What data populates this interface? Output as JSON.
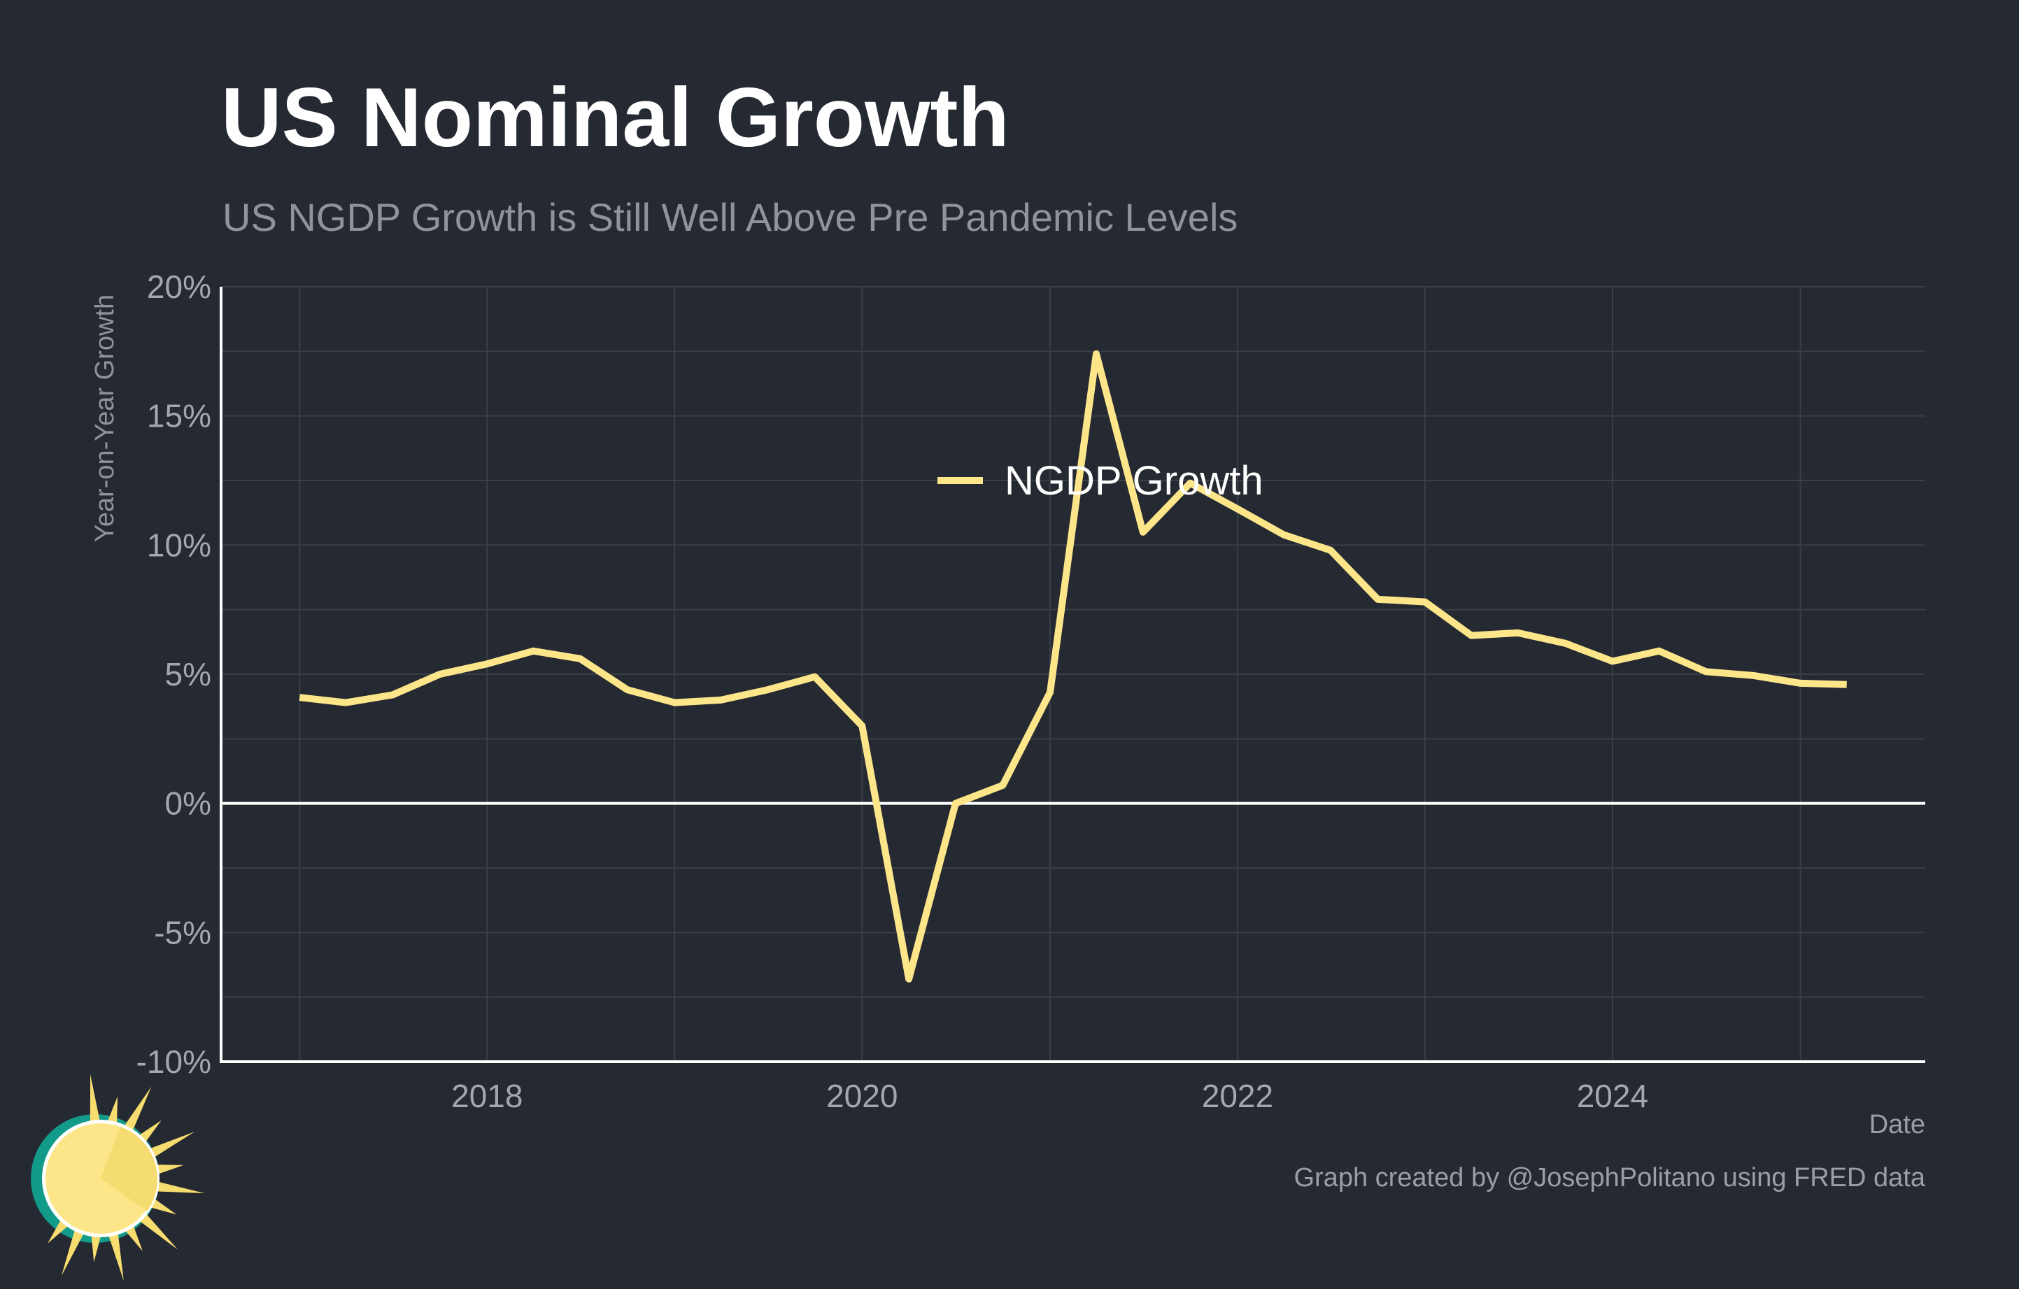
{
  "header": {
    "title": "US Nominal Growth",
    "subtitle": "US NGDP Growth is Still Well Above Pre Pandemic Levels"
  },
  "footer": {
    "caption": "Graph created by @JosephPolitano using FRED data"
  },
  "logo": {
    "icon": "sun-logo-icon"
  },
  "colors": {
    "background": "#252932",
    "line": "#fde68a",
    "grid": "#3a3e47",
    "axis": "#ffffff"
  },
  "chart_data": {
    "type": "line",
    "title": "US Nominal Growth",
    "subtitle": "US NGDP Growth is Still Well Above Pre Pandemic Levels",
    "xlabel": "Date",
    "ylabel": "Year-on-Year Growth",
    "ylim": [
      -10,
      20
    ],
    "xlim": [
      "2016-08-01",
      "2025-09-01"
    ],
    "yticks": [
      "-10%",
      "-5%",
      "0%",
      "5%",
      "10%",
      "15%",
      "20%"
    ],
    "ytick_values": [
      -10,
      -5,
      0,
      5,
      10,
      15,
      20
    ],
    "xticks": [
      "2018",
      "2020",
      "2022",
      "2024"
    ],
    "grid": true,
    "legend_position": "top-center",
    "series": [
      {
        "name": "NGDP Growth",
        "color": "#fde68a",
        "x": [
          "2017-01-01",
          "2017-04-01",
          "2017-07-01",
          "2017-10-01",
          "2018-01-01",
          "2018-04-01",
          "2018-07-01",
          "2018-10-01",
          "2019-01-01",
          "2019-04-01",
          "2019-07-01",
          "2019-10-01",
          "2020-01-01",
          "2020-04-01",
          "2020-07-01",
          "2020-10-01",
          "2021-01-01",
          "2021-04-01",
          "2021-07-01",
          "2021-10-01",
          "2022-01-01",
          "2022-04-01",
          "2022-07-01",
          "2022-10-01",
          "2023-01-01",
          "2023-04-01",
          "2023-07-01",
          "2023-10-01",
          "2024-01-01",
          "2024-04-01",
          "2024-07-01",
          "2024-10-01",
          "2025-01-01",
          "2025-04-01"
        ],
        "values": [
          4.1,
          3.9,
          4.2,
          5.0,
          5.4,
          5.9,
          5.6,
          4.4,
          3.9,
          4.0,
          4.4,
          4.9,
          3.0,
          -6.8,
          0.0,
          0.7,
          4.3,
          17.4,
          10.5,
          12.4,
          11.4,
          10.4,
          9.8,
          7.9,
          7.8,
          6.5,
          6.6,
          6.2,
          5.5,
          5.9,
          5.1,
          4.95,
          4.65,
          4.6
        ]
      }
    ]
  }
}
